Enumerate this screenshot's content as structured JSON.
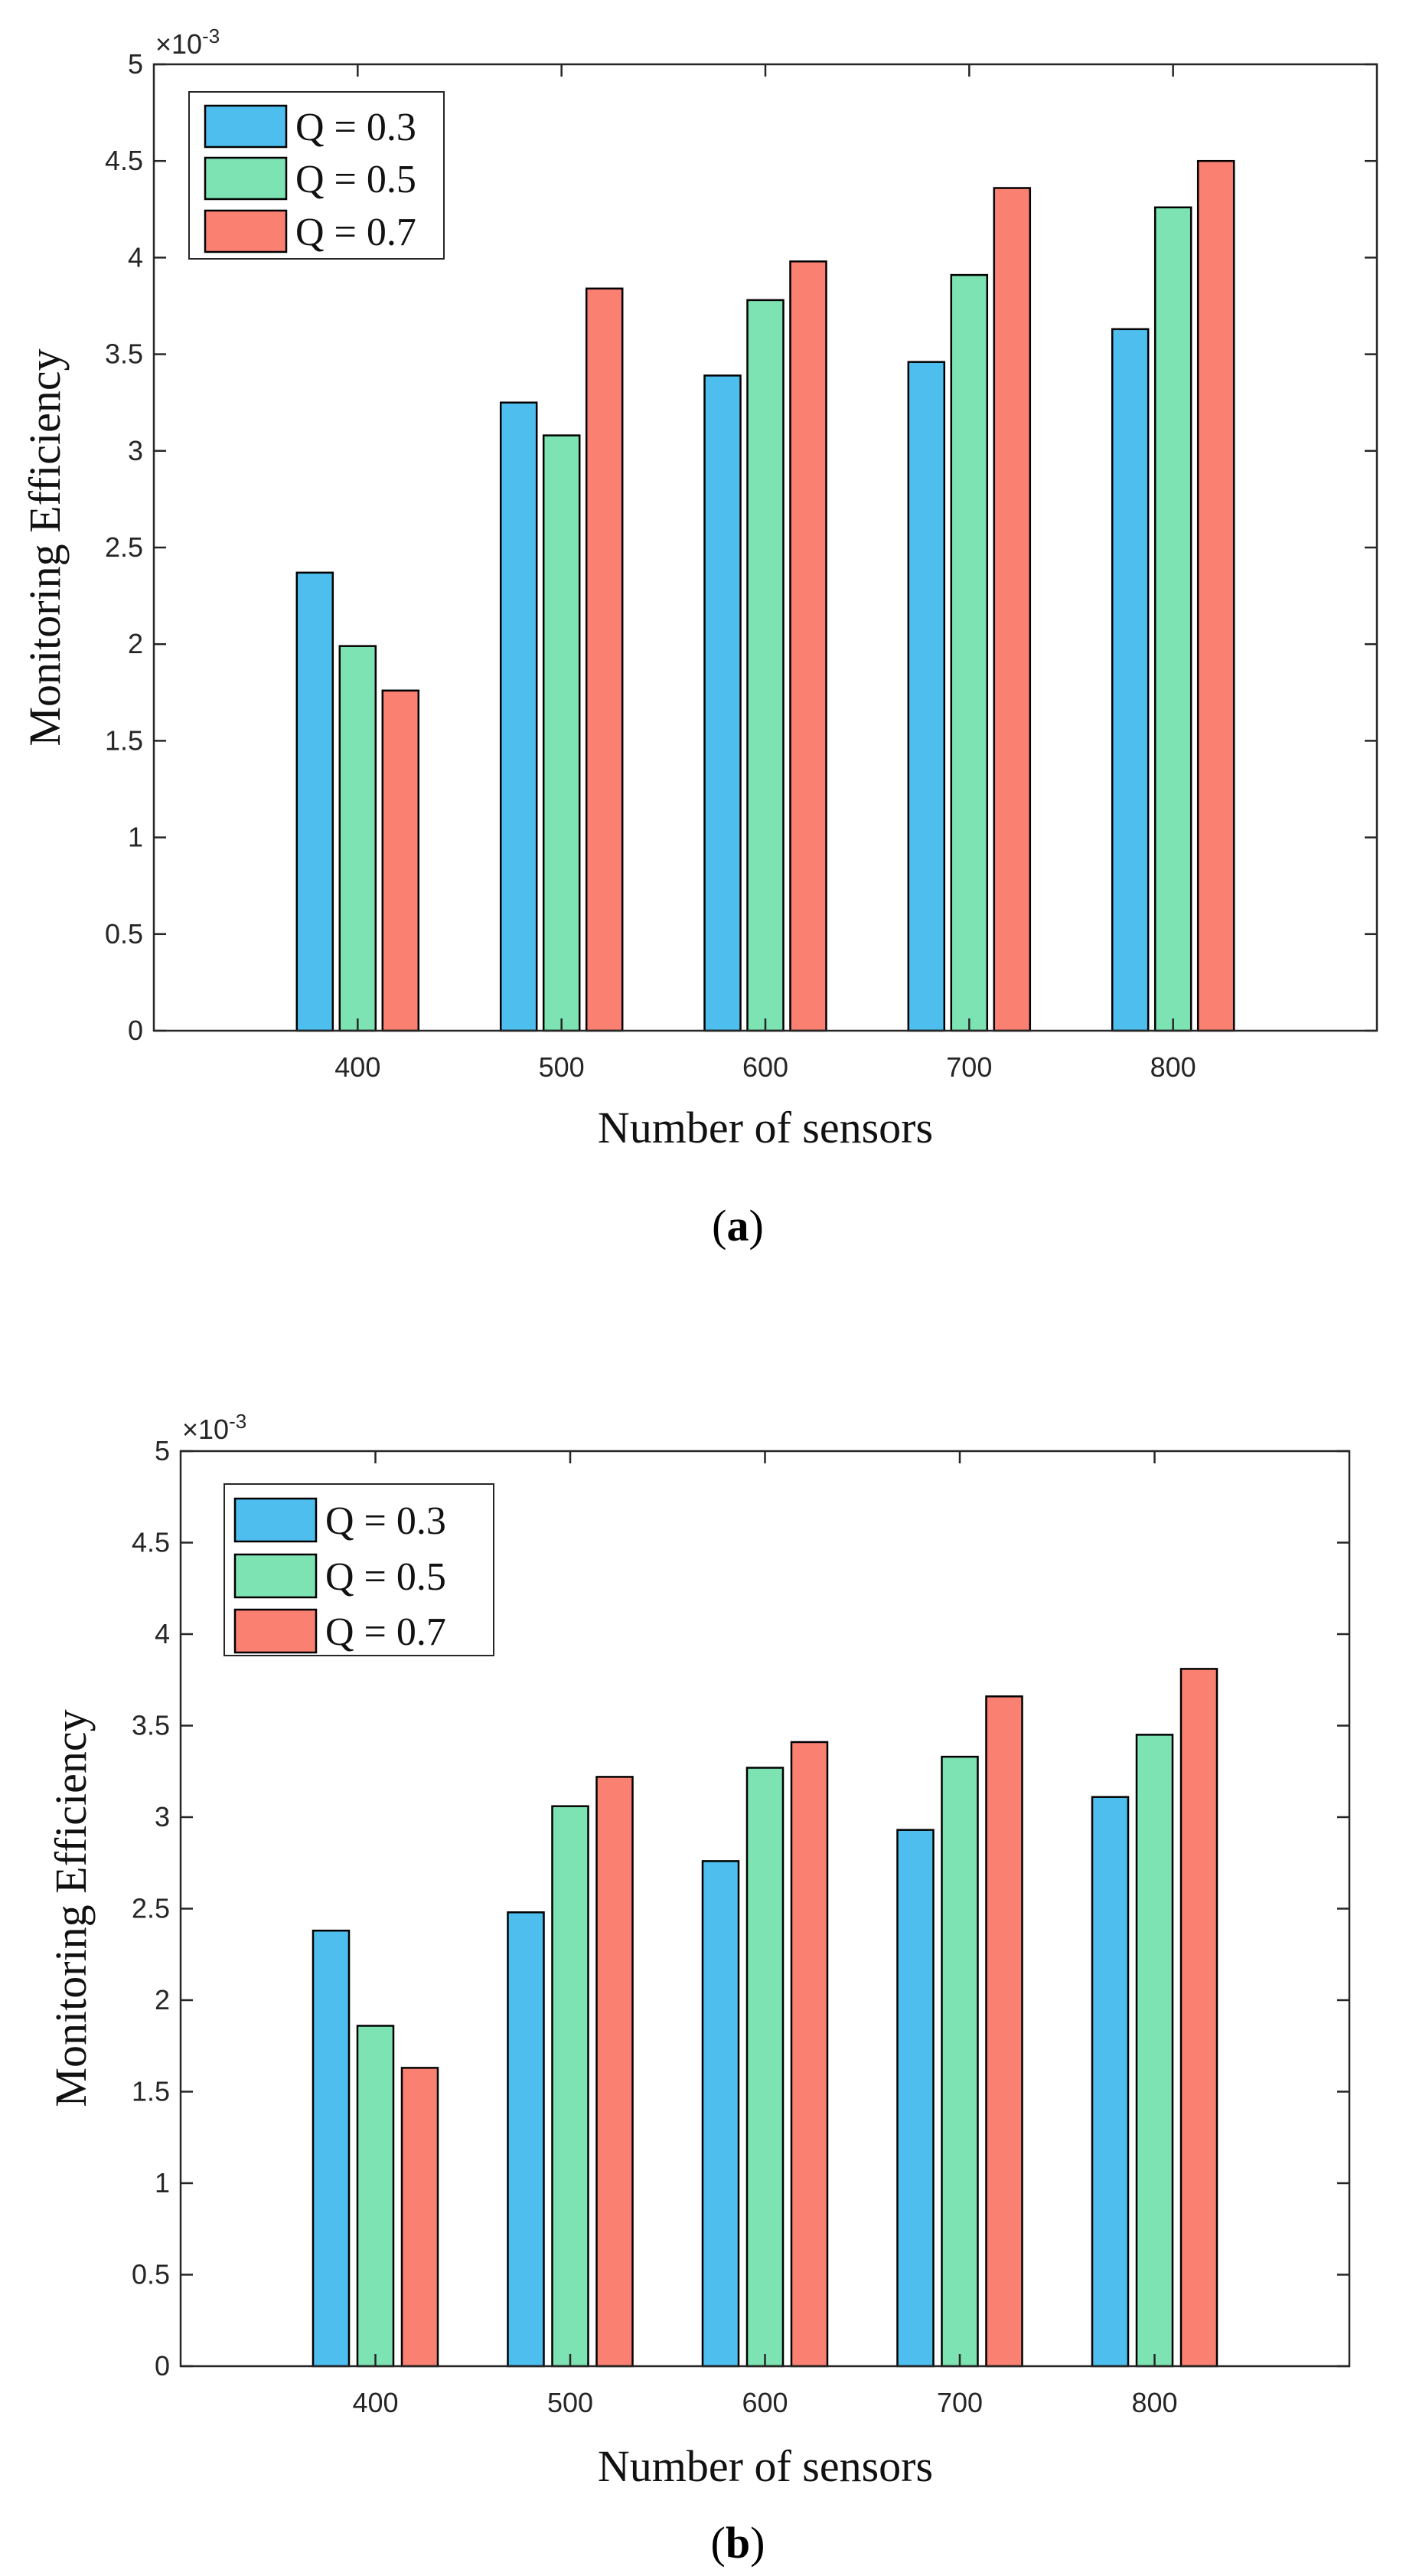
{
  "chart_data": [
    {
      "panel": "a",
      "type": "bar",
      "caption_letter": "a",
      "xlabel": "Number of sensors",
      "ylabel": "Monitoring Efficiency",
      "scale_base": "×10",
      "scale_exponent": "-3",
      "categories": [
        "400",
        "500",
        "600",
        "700",
        "800"
      ],
      "yticks": [
        "0",
        "0.5",
        "1",
        "1.5",
        "2",
        "2.5",
        "3",
        "3.5",
        "4",
        "4.5",
        "5"
      ],
      "ylim": [
        0,
        5
      ],
      "legend_position": "top-left",
      "series": [
        {
          "name": "Q = 0.3",
          "color": "#4DBEEE",
          "values": [
            2.37,
            3.25,
            3.39,
            3.46,
            3.63
          ]
        },
        {
          "name": "Q = 0.5",
          "color": "#7DE3B3",
          "values": [
            1.99,
            3.08,
            3.78,
            3.91,
            4.26
          ]
        },
        {
          "name": "Q = 0.7",
          "color": "#FA8072",
          "values": [
            1.76,
            3.84,
            3.98,
            4.36,
            4.5
          ]
        }
      ]
    },
    {
      "panel": "b",
      "type": "bar",
      "caption_letter": "b",
      "xlabel": "Number of sensors",
      "ylabel": "Monitoring Efficiency",
      "scale_base": "×10",
      "scale_exponent": "-3",
      "categories": [
        "400",
        "500",
        "600",
        "700",
        "800"
      ],
      "yticks": [
        "0",
        "0.5",
        "1",
        "1.5",
        "2",
        "2.5",
        "3",
        "3.5",
        "4",
        "4.5",
        "5"
      ],
      "ylim": [
        0,
        5
      ],
      "legend_position": "top-left",
      "series": [
        {
          "name": "Q = 0.3",
          "color": "#4DBEEE",
          "values": [
            2.38,
            2.48,
            2.76,
            2.93,
            3.11
          ]
        },
        {
          "name": "Q = 0.5",
          "color": "#7DE3B3",
          "values": [
            1.86,
            3.06,
            3.27,
            3.33,
            3.45
          ]
        },
        {
          "name": "Q = 0.7",
          "color": "#FA8072",
          "values": [
            1.63,
            3.22,
            3.41,
            3.66,
            3.81
          ]
        }
      ]
    }
  ]
}
